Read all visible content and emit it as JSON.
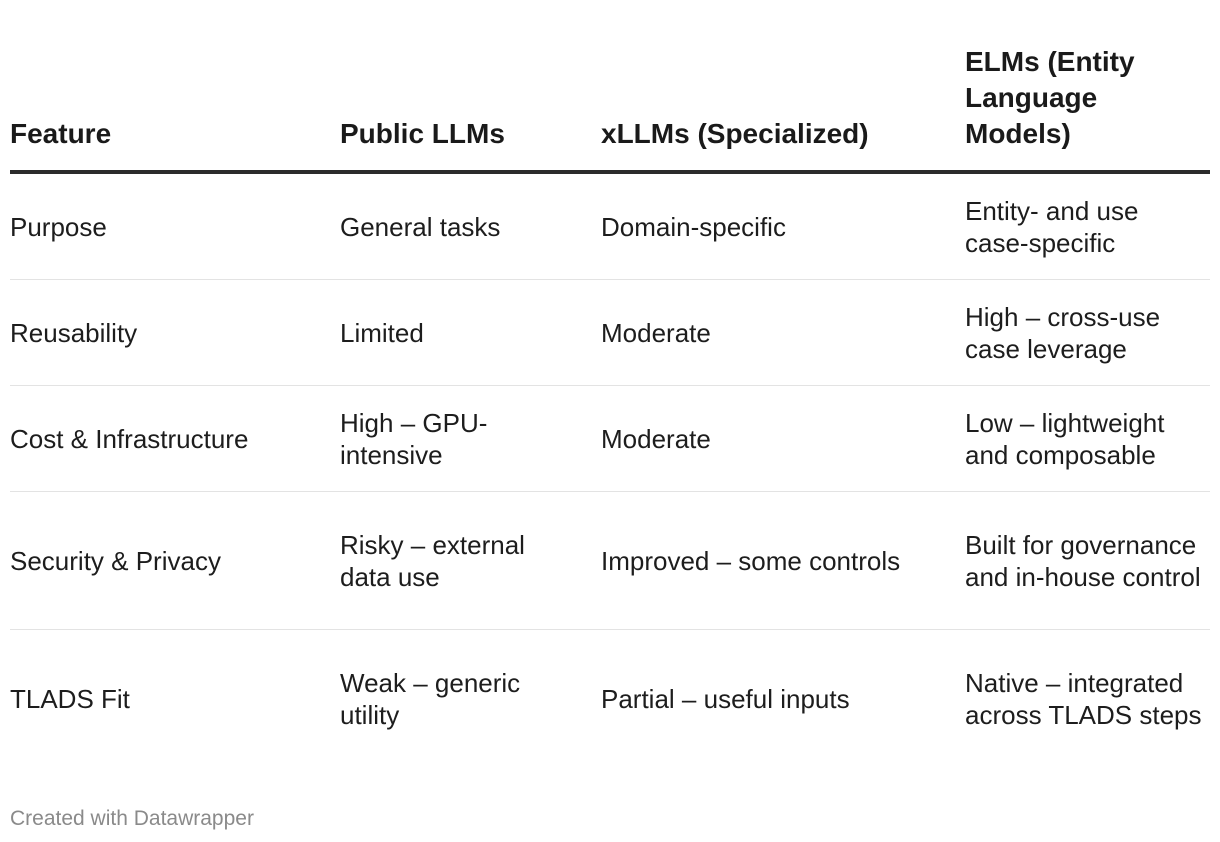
{
  "chart_data": {
    "type": "table",
    "columns": [
      "Feature",
      "Public LLMs",
      "xLLMs (Specialized)",
      "ELMs (Entity Language Models)"
    ],
    "rows": [
      [
        "Purpose",
        "General tasks",
        "Domain-specific",
        "Entity- and use case-specific"
      ],
      [
        "Reusability",
        "Limited",
        "Moderate",
        "High – cross-use case leverage"
      ],
      [
        "Cost & Infrastructure",
        "High – GPU-intensive",
        "Moderate",
        "Low – lightweight and composable"
      ],
      [
        "Security & Privacy",
        "Risky – external data use",
        "Improved – some controls",
        "Built for governance and in-house control"
      ],
      [
        "TLADS Fit",
        "Weak – generic utility",
        "Partial – useful inputs",
        "Native – integrated across TLADS steps"
      ]
    ]
  },
  "footer": {
    "credit": "Created with Datawrapper"
  }
}
